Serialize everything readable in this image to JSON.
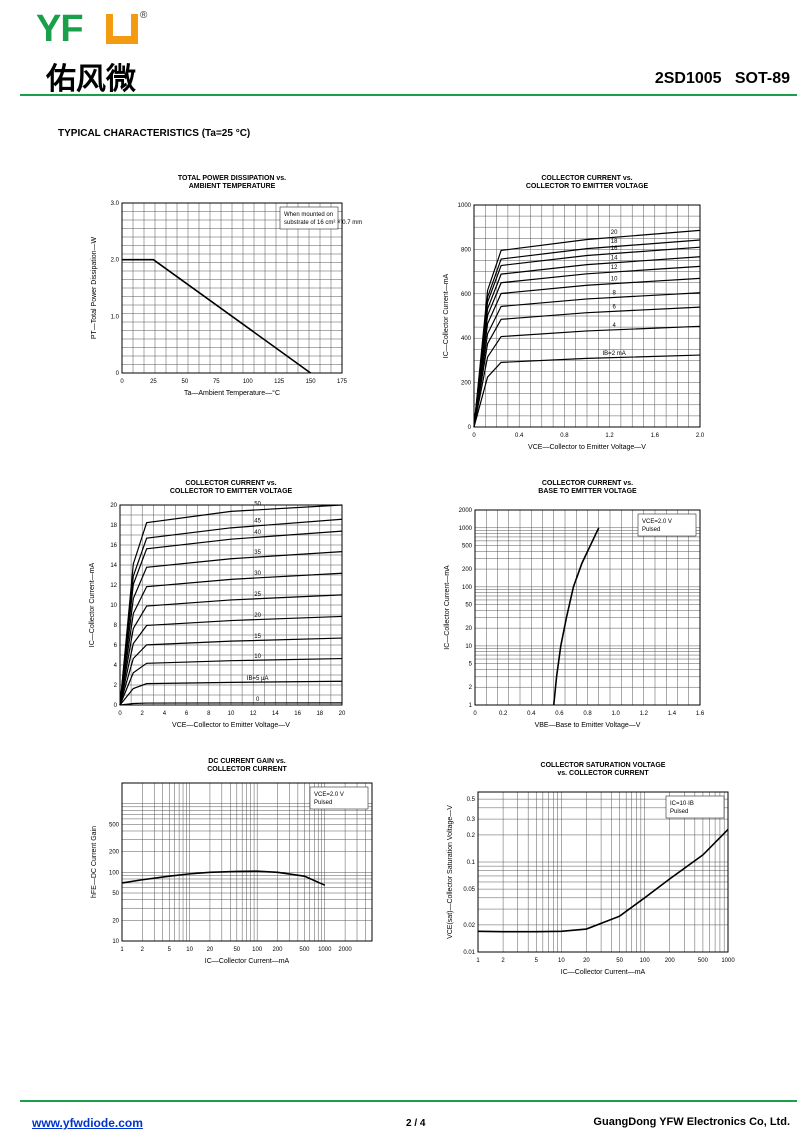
{
  "header": {
    "logo_text": "YFW",
    "logo_chinese": "佑风微",
    "part_title": "2SD1005   SOT-89"
  },
  "section_title": "TYPICAL CHARACTERISTICS (Ta=25 °C)",
  "footer": {
    "url": "www.yfwdiode.com",
    "page": "2 / 4",
    "company": "GuangDong YFW Electronics Co, Ltd."
  },
  "colors": {
    "brand_green": "#1aa04a",
    "brand_orange": "#f39c12",
    "link_blue": "#0033cc"
  },
  "charts": [
    {
      "id": "power",
      "type": "line",
      "title": [
        "TOTAL POWER DISSIPATION vs.",
        "AMBIENT TEMPERATURE"
      ],
      "xlabel": "Ta—Ambient Temperature—°C",
      "ylabel": "PT—Total Power Dissipation—W",
      "annotation": [
        "When mounted on",
        "substrate of 16 cm² × 0.7 mm"
      ],
      "x_ticks": [
        "0",
        "25",
        "50",
        "75",
        "100",
        "125",
        "150",
        "175"
      ],
      "y_ticks": [
        "0",
        "1.0",
        "2.0",
        "3.0"
      ],
      "xlim": [
        0,
        175
      ],
      "ylim": [
        0,
        3
      ],
      "series": [
        {
          "x": [
            0,
            25,
            150
          ],
          "y": [
            2.0,
            2.0,
            0
          ]
        }
      ]
    },
    {
      "id": "ic_vce_ma",
      "type": "line",
      "title": [
        "COLLECTOR CURRENT vs.",
        "COLLECTOR TO EMITTER VOLTAGE"
      ],
      "xlabel": "VCE—Collector to Emitter Voltage—V",
      "ylabel": "IC—Collector Current—mA",
      "x_ticks": [
        "0",
        "0.4",
        "0.8",
        "1.2",
        "1.6",
        "2.0"
      ],
      "y_ticks": [
        "0",
        "200",
        "400",
        "600",
        "800",
        "1000"
      ],
      "xlim": [
        0,
        2.0
      ],
      "ylim": [
        0,
        1000
      ],
      "curve_labels": [
        "IB=2 mA",
        "4",
        "6",
        "8",
        "10",
        "12",
        "14",
        "16",
        "18",
        "20"
      ],
      "curve_levels": [
        300,
        420,
        500,
        560,
        620,
        670,
        710,
        750,
        780,
        820
      ]
    },
    {
      "id": "ic_vce_ua",
      "type": "line",
      "title": [
        "COLLECTOR CURRENT vs.",
        "COLLECTOR TO EMITTER VOLTAGE"
      ],
      "xlabel": "VCE—Collector to Emitter Voltage—V",
      "ylabel": "IC—Collector Current—mA",
      "x_ticks": [
        "0",
        "2",
        "4",
        "6",
        "8",
        "10",
        "12",
        "14",
        "16",
        "18",
        "20"
      ],
      "y_ticks": [
        "0",
        "2",
        "4",
        "6",
        "8",
        "10",
        "12",
        "14",
        "16",
        "18",
        "20"
      ],
      "xlim": [
        0,
        20
      ],
      "ylim": [
        0,
        20
      ],
      "curve_labels": [
        "0",
        "IB=5 μA",
        "10",
        "15",
        "20",
        "25",
        "30",
        "35",
        "40",
        "45",
        "50"
      ],
      "curve_levels": [
        0.2,
        2.2,
        4.3,
        6.2,
        8.2,
        10.2,
        12.2,
        14.2,
        16.1,
        17.2,
        18.8
      ]
    },
    {
      "id": "ic_vbe",
      "type": "line",
      "title": [
        "COLLECTOR CURRENT vs.",
        "BASE TO EMITTER VOLTAGE"
      ],
      "xlabel": "VBE—Base to Emitter Voltage—V",
      "ylabel": "IC—Collector Current—mA",
      "annotation": [
        "VCE=2.0 V",
        "Pulsed"
      ],
      "x_ticks": [
        "0",
        "0.2",
        "0.4",
        "0.6",
        "0.8",
        "1.0",
        "1.2",
        "1.4",
        "1.6"
      ],
      "y_ticks": [
        "1",
        "2",
        "5",
        "10",
        "20",
        "50",
        "100",
        "200",
        "500",
        "1000",
        "2000"
      ],
      "xlim": [
        0,
        1.6
      ],
      "ylim": [
        1,
        2000
      ],
      "series": [
        {
          "x": [
            0.56,
            0.58,
            0.61,
            0.65,
            0.7,
            0.76,
            0.82,
            0.88
          ],
          "y": [
            1,
            3,
            10,
            30,
            100,
            250,
            500,
            1000
          ]
        }
      ]
    },
    {
      "id": "hfe",
      "type": "line",
      "title": [
        "DC CURRENT GAIN vs.",
        "COLLECTOR CURRENT"
      ],
      "xlabel": "IC—Collector Current—mA",
      "ylabel": "hFE—DC Current Gain",
      "annotation": [
        "VCE=2.0 V",
        "Pulsed"
      ],
      "x_ticks": [
        "1",
        "2",
        "5",
        "10",
        "20",
        "50",
        "100",
        "200",
        "500",
        "1000",
        "2000"
      ],
      "y_ticks": [
        "10",
        "20",
        "50",
        "100",
        "200",
        "500"
      ],
      "xlim": [
        1,
        5000
      ],
      "ylim": [
        10,
        2000
      ],
      "series": [
        {
          "x": [
            1,
            2,
            5,
            10,
            20,
            50,
            100,
            200,
            500,
            1000
          ],
          "y": [
            70,
            78,
            88,
            95,
            100,
            103,
            104,
            100,
            88,
            65
          ]
        }
      ]
    },
    {
      "id": "vcesat",
      "type": "line",
      "title": [
        "COLLECTOR SATURATION VOLTAGE",
        "vs. COLLECTOR CURRENT"
      ],
      "xlabel": "IC—Collector Current—mA",
      "ylabel": "VCE(sat)—Collector Saturation Voltage—V",
      "annotation": [
        "IC=10·IB",
        "Pulsed"
      ],
      "x_ticks": [
        "1",
        "2",
        "5",
        "10",
        "20",
        "50",
        "100",
        "200",
        "500",
        "1000"
      ],
      "y_ticks": [
        "0.01",
        "0.02",
        "0.05",
        "0.1",
        "0.2",
        "0.3",
        "0.5"
      ],
      "xlim": [
        1,
        1000
      ],
      "ylim": [
        0.01,
        0.6
      ],
      "series": [
        {
          "x": [
            1,
            2,
            5,
            10,
            20,
            50,
            100,
            200,
            500,
            1000
          ],
          "y": [
            0.017,
            0.0168,
            0.0168,
            0.017,
            0.018,
            0.025,
            0.04,
            0.065,
            0.12,
            0.23
          ]
        }
      ]
    }
  ]
}
